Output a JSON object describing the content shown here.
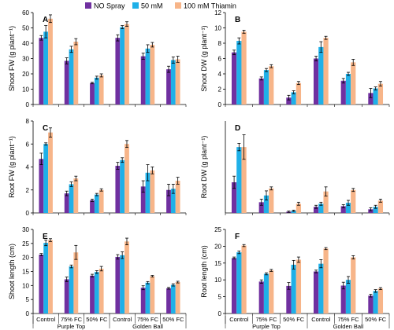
{
  "colors": {
    "no_spray": "#7030A0",
    "mm50": "#1FB0E8",
    "thiamin": "#F7B589"
  },
  "legend": [
    "NO Spray",
    "50 mM",
    "100 mM Thiamin"
  ],
  "x_categories": [
    "Control",
    "75% FC",
    "50% FC",
    "Control",
    "75% FC",
    "50% FC"
  ],
  "x_groups": [
    "Purple Top",
    "Golden Ball"
  ],
  "chart_data": [
    {
      "type": "bar",
      "panel": "A",
      "ylabel": "Shoot FW (g plant⁻¹)",
      "ylim": [
        0,
        60
      ],
      "yticks": [
        0,
        10,
        20,
        30,
        40,
        50,
        60
      ],
      "series": [
        {
          "name": "NO Spray",
          "values": [
            43.5,
            28.5,
            14,
            43.5,
            31.5,
            23
          ],
          "errors": [
            1.5,
            2,
            0.5,
            2,
            2,
            2
          ]
        },
        {
          "name": "50 mM",
          "values": [
            47.5,
            36,
            17.5,
            50.5,
            36.5,
            29
          ],
          "errors": [
            4,
            2,
            1,
            1,
            2.5,
            2
          ]
        },
        {
          "name": "100 mM Thiamin",
          "values": [
            56,
            41,
            19,
            52.5,
            39,
            29.5
          ],
          "errors": [
            2.5,
            2,
            1,
            1.5,
            1.5,
            2
          ]
        }
      ]
    },
    {
      "type": "bar",
      "panel": "B",
      "ylabel": "Shoot DW (g plant⁻¹)",
      "ylim": [
        0,
        12
      ],
      "yticks": [
        0,
        2,
        4,
        6,
        8,
        10,
        12
      ],
      "series": [
        {
          "name": "NO Spray",
          "values": [
            6.8,
            3.4,
            0.9,
            6,
            3.1,
            1.5
          ],
          "errors": [
            0.3,
            0.2,
            0.3,
            0.3,
            0.3,
            0.6
          ]
        },
        {
          "name": "50 mM",
          "values": [
            8.3,
            4.5,
            1.6,
            7.5,
            4,
            2.1
          ],
          "errors": [
            0.4,
            0.2,
            0.2,
            0.7,
            0.2,
            0.2
          ]
        },
        {
          "name": "100 mM Thiamin",
          "values": [
            9.5,
            5,
            2.8,
            8.7,
            5.5,
            2.7
          ],
          "errors": [
            0.2,
            0.2,
            0.2,
            0.2,
            0.4,
            0.3
          ]
        }
      ]
    },
    {
      "type": "bar",
      "panel": "C",
      "ylabel": "Root FW (g plant⁻¹)",
      "ylim": [
        0,
        8
      ],
      "yticks": [
        0,
        2,
        4,
        6,
        8
      ],
      "series": [
        {
          "name": "NO Spray",
          "values": [
            4.7,
            1.7,
            1.1,
            4.1,
            2.3,
            2
          ],
          "errors": [
            0.5,
            0.2,
            0.1,
            0.3,
            0.5,
            0.5
          ]
        },
        {
          "name": "50 mM",
          "values": [
            6,
            2.5,
            1.6,
            4.6,
            3.5,
            2.1
          ],
          "errors": [
            0.1,
            0.2,
            0.1,
            0.2,
            0.7,
            0.4
          ]
        },
        {
          "name": "100 mM Thiamin",
          "values": [
            7,
            3,
            2,
            6,
            3.7,
            2.8
          ],
          "errors": [
            0.4,
            0.2,
            0.1,
            0.3,
            0.3,
            0.3
          ]
        }
      ]
    },
    {
      "type": "bar",
      "panel": "D",
      "ylabel": "Root DW (g plant⁻¹)",
      "ylim": [
        0,
        3
      ],
      "yticks": [],
      "series": [
        {
          "name": "NO Spray",
          "values": [
            1,
            0.35,
            0.04,
            0.2,
            0.22,
            0.12
          ],
          "errors": [
            0.2,
            0.1,
            0.02,
            0.05,
            0.05,
            0.05
          ]
        },
        {
          "name": "50 mM",
          "values": [
            2.15,
            0.57,
            0.07,
            0.3,
            0.33,
            0.2
          ],
          "errors": [
            0.12,
            0.15,
            0.02,
            0.05,
            0.08,
            0.05
          ]
        },
        {
          "name": "100 mM Thiamin",
          "values": [
            2.15,
            0.8,
            0.3,
            0.7,
            0.75,
            0.4
          ],
          "errors": [
            0.4,
            0.05,
            0.05,
            0.15,
            0.05,
            0.05
          ]
        }
      ]
    },
    {
      "type": "bar",
      "panel": "E",
      "ylabel": "Shoot length (cm)",
      "ylim": [
        0,
        30
      ],
      "yticks": [
        0,
        5,
        10,
        15,
        20,
        25,
        30
      ],
      "series": [
        {
          "name": "NO Spray",
          "values": [
            21,
            12.2,
            13.5,
            20.2,
            9.2,
            9
          ],
          "errors": [
            0.4,
            0.8,
            0.5,
            0.8,
            0.7,
            0.3
          ]
        },
        {
          "name": "50 mM",
          "values": [
            25.2,
            16.8,
            14.8,
            20.8,
            11,
            10.2
          ],
          "errors": [
            1,
            0.5,
            0.5,
            1.2,
            0.4,
            0.4
          ]
        },
        {
          "name": "100 mM Thiamin",
          "values": [
            26.2,
            21.8,
            16,
            25.7,
            13.3,
            11.2
          ],
          "errors": [
            0.5,
            2.5,
            0.8,
            1.2,
            0.3,
            0.3
          ]
        }
      ]
    },
    {
      "type": "bar",
      "panel": "F",
      "ylabel": "Root length (cm)",
      "ylim": [
        0,
        25
      ],
      "yticks": [
        0,
        5,
        10,
        15,
        20,
        25
      ],
      "series": [
        {
          "name": "NO Spray",
          "values": [
            16.5,
            9.5,
            8.2,
            12.5,
            8.3,
            5.3
          ],
          "errors": [
            0.3,
            0.5,
            1,
            0.4,
            1,
            0.4
          ]
        },
        {
          "name": "50 mM",
          "values": [
            18.2,
            11.8,
            14.5,
            14.8,
            10,
            6.7
          ],
          "errors": [
            0.4,
            0.3,
            1.3,
            1.2,
            1,
            0.4
          ]
        },
        {
          "name": "100 mM Thiamin",
          "values": [
            20.2,
            12.8,
            16,
            19.3,
            16.7,
            7.4
          ],
          "errors": [
            0.3,
            0.3,
            0.8,
            0.3,
            0.5,
            0.3
          ]
        }
      ]
    }
  ]
}
